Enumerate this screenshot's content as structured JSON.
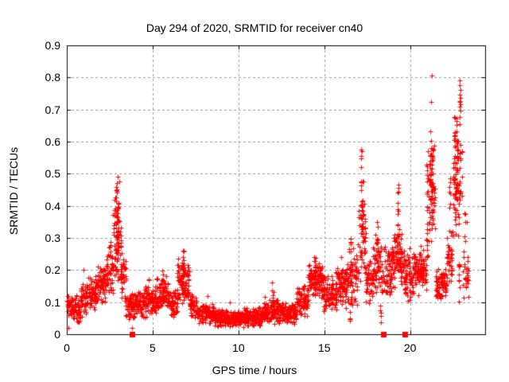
{
  "chart_data": {
    "type": "scatter",
    "title": "Day 294 of 2020, SRMTID for receiver cn40",
    "xlabel": "GPS time / hours",
    "ylabel": "SRMTID / TECUs",
    "xlim": [
      0,
      24.37
    ],
    "ylim": [
      0,
      0.9
    ],
    "xtick_values": [
      0,
      5,
      10,
      15,
      20
    ],
    "xtick_labels": [
      "0",
      "5",
      "10",
      "15",
      "20"
    ],
    "ytick_values": [
      0,
      0.1,
      0.2,
      0.3,
      0.4,
      0.5,
      0.6,
      0.7,
      0.8,
      0.9
    ],
    "ytick_labels": [
      "0",
      "0.1",
      "0.2",
      "0.3",
      "0.4",
      "0.5",
      "0.6",
      "0.7",
      "0.8",
      "0.9"
    ],
    "grid": true,
    "grid_color": "#9a9a9a",
    "frame_color": "#000000",
    "marker": {
      "shape": "plus",
      "color": "#ff0000",
      "size": 7
    },
    "points_per_hour": 105,
    "random_seed": 20294,
    "profile_bins": [
      [
        0.0,
        0.3,
        0.03,
        0.16,
        1.0
      ],
      [
        0.3,
        0.8,
        0.03,
        0.13,
        1.0
      ],
      [
        0.8,
        1.2,
        0.05,
        0.17,
        1.0
      ],
      [
        1.2,
        1.8,
        0.06,
        0.19,
        1.1
      ],
      [
        1.8,
        2.3,
        0.08,
        0.22,
        1.1
      ],
      [
        2.3,
        2.7,
        0.1,
        0.3,
        1.2
      ],
      [
        2.7,
        3.15,
        0.14,
        0.44,
        1.5
      ],
      [
        3.15,
        3.45,
        0.08,
        0.28,
        1.0
      ],
      [
        3.45,
        3.95,
        0.04,
        0.14,
        1.2
      ],
      [
        3.95,
        4.5,
        0.05,
        0.14,
        1.0
      ],
      [
        4.5,
        5.2,
        0.05,
        0.16,
        1.1
      ],
      [
        5.2,
        5.9,
        0.06,
        0.19,
        1.1
      ],
      [
        5.9,
        6.45,
        0.05,
        0.15,
        1.0
      ],
      [
        6.45,
        7.15,
        0.09,
        0.24,
        1.4
      ],
      [
        7.15,
        7.6,
        0.04,
        0.13,
        1.0
      ],
      [
        7.6,
        8.6,
        0.03,
        0.1,
        1.1
      ],
      [
        8.6,
        10.1,
        0.02,
        0.08,
        1.2
      ],
      [
        10.1,
        11.4,
        0.02,
        0.09,
        1.2
      ],
      [
        11.4,
        12.4,
        0.03,
        0.12,
        1.2
      ],
      [
        12.4,
        13.4,
        0.03,
        0.1,
        1.2
      ],
      [
        13.4,
        14.05,
        0.05,
        0.16,
        1.1
      ],
      [
        14.05,
        14.95,
        0.1,
        0.23,
        1.3
      ],
      [
        14.95,
        15.7,
        0.07,
        0.2,
        1.1
      ],
      [
        15.7,
        16.35,
        0.08,
        0.22,
        1.1
      ],
      [
        16.35,
        16.95,
        0.08,
        0.27,
        1.1
      ],
      [
        16.95,
        17.4,
        0.14,
        0.42,
        1.0
      ],
      [
        17.4,
        17.85,
        0.09,
        0.24,
        1.0
      ],
      [
        17.85,
        18.35,
        0.1,
        0.32,
        1.1
      ],
      [
        18.35,
        18.9,
        0.08,
        0.28,
        1.1
      ],
      [
        18.9,
        19.55,
        0.13,
        0.34,
        1.3
      ],
      [
        19.55,
        20.15,
        0.1,
        0.28,
        1.1
      ],
      [
        20.15,
        20.95,
        0.12,
        0.27,
        1.2
      ],
      [
        20.95,
        21.45,
        0.25,
        0.62,
        1.3
      ],
      [
        21.45,
        22.15,
        0.09,
        0.22,
        1.1
      ],
      [
        22.15,
        22.5,
        0.13,
        0.35,
        1.0
      ],
      [
        22.5,
        23.05,
        0.25,
        0.66,
        1.3
      ],
      [
        23.05,
        23.4,
        0.1,
        0.26,
        0.7
      ]
    ],
    "spikes": [
      [
        2.9,
        0.3,
        0.46,
        14
      ],
      [
        2.98,
        0.25,
        0.42,
        10
      ],
      [
        4.75,
        0.12,
        0.2,
        5
      ],
      [
        5.6,
        0.12,
        0.2,
        6
      ],
      [
        6.78,
        0.18,
        0.26,
        10
      ],
      [
        12.0,
        0.1,
        0.155,
        6
      ],
      [
        14.45,
        0.18,
        0.25,
        8
      ],
      [
        16.5,
        0.04,
        0.1,
        5
      ],
      [
        16.55,
        0.25,
        0.31,
        6
      ],
      [
        17.15,
        0.3,
        0.575,
        16
      ],
      [
        17.25,
        0.25,
        0.5,
        10
      ],
      [
        18.1,
        0.22,
        0.35,
        8
      ],
      [
        18.3,
        0.03,
        0.1,
        5
      ],
      [
        19.28,
        0.3,
        0.465,
        12
      ],
      [
        20.6,
        0.18,
        0.28,
        8
      ],
      [
        21.0,
        0.2,
        0.35,
        8
      ],
      [
        21.2,
        0.4,
        0.64,
        18
      ],
      [
        21.3,
        0.35,
        0.6,
        12
      ],
      [
        22.3,
        0.3,
        0.5,
        8
      ],
      [
        22.6,
        0.45,
        0.68,
        16
      ],
      [
        22.72,
        0.5,
        0.7,
        12
      ],
      [
        22.85,
        0.1,
        0.22,
        10
      ],
      [
        22.9,
        0.55,
        0.79,
        10
      ],
      [
        23.2,
        0.25,
        0.4,
        5
      ]
    ],
    "outliers": [
      [
        0.1,
        0.02
      ],
      [
        0.95,
        0.2
      ],
      [
        2.9,
        0.47
      ],
      [
        2.95,
        0.49
      ],
      [
        3.05,
        0.475
      ],
      [
        3.8,
        0.02
      ],
      [
        6.8,
        0.26
      ],
      [
        8.2,
        0.12
      ],
      [
        9.5,
        0.1
      ],
      [
        11.95,
        0.16
      ],
      [
        16.0,
        0.24
      ],
      [
        17.15,
        0.575
      ],
      [
        19.3,
        0.465
      ],
      [
        21.22,
        0.725
      ],
      [
        21.25,
        0.805
      ],
      [
        22.88,
        0.79
      ],
      [
        22.9,
        0.775
      ],
      [
        22.92,
        0.76
      ],
      [
        23.3,
        0.35
      ]
    ],
    "zero_event_markers": {
      "shape": "square",
      "color": "#ff0000",
      "size": 7,
      "t": [
        3.8,
        18.45,
        19.7
      ],
      "v": 0
    }
  }
}
